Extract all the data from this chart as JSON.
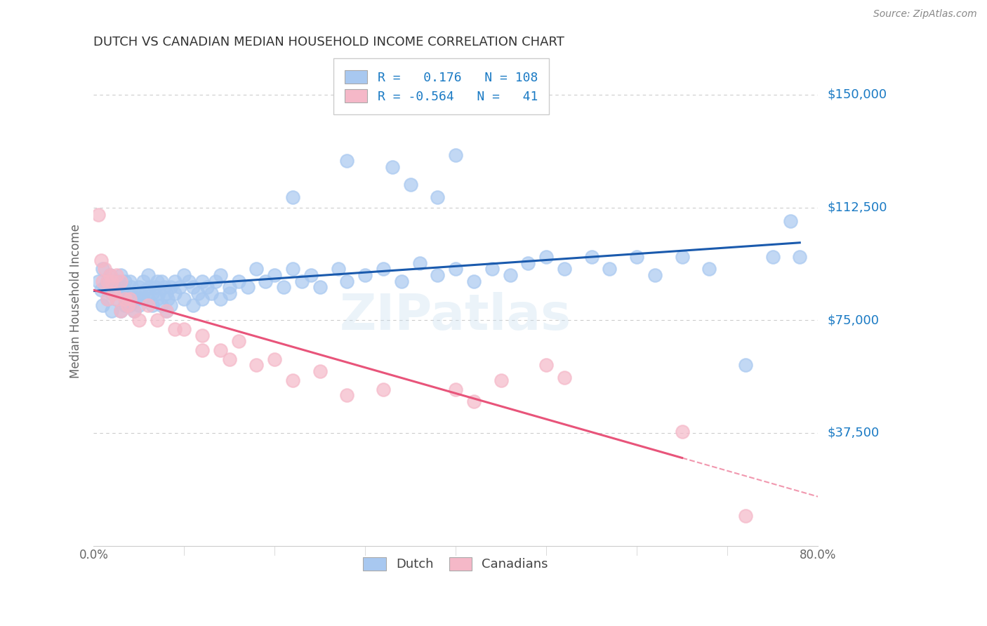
{
  "title": "DUTCH VS CANADIAN MEDIAN HOUSEHOLD INCOME CORRELATION CHART",
  "source": "Source: ZipAtlas.com",
  "ylabel": "Median Household Income",
  "ytick_labels": [
    "$37,500",
    "$75,000",
    "$112,500",
    "$150,000"
  ],
  "ytick_values": [
    37500,
    75000,
    112500,
    150000
  ],
  "ymin": 0,
  "ymax": 162500,
  "xmin": 0.0,
  "xmax": 0.8,
  "legend_dutch_r": "0.176",
  "legend_dutch_n": "108",
  "legend_canadian_r": "-0.564",
  "legend_canadian_n": "41",
  "dutch_color": "#a8c8f0",
  "dutch_edge_color": "#a8c8f0",
  "canadian_color": "#f5b8c8",
  "canadian_edge_color": "#f5b8c8",
  "dutch_line_color": "#1a5aad",
  "canadian_line_color": "#e8547a",
  "background_color": "#ffffff",
  "grid_color": "#cccccc",
  "watermark": "ZIPatlas",
  "dutch_scatter_x": [
    0.005,
    0.008,
    0.01,
    0.01,
    0.012,
    0.015,
    0.015,
    0.018,
    0.02,
    0.02,
    0.022,
    0.025,
    0.025,
    0.028,
    0.03,
    0.03,
    0.03,
    0.032,
    0.035,
    0.035,
    0.038,
    0.04,
    0.04,
    0.042,
    0.045,
    0.045,
    0.048,
    0.05,
    0.05,
    0.052,
    0.055,
    0.055,
    0.058,
    0.06,
    0.06,
    0.062,
    0.065,
    0.065,
    0.068,
    0.07,
    0.07,
    0.072,
    0.075,
    0.075,
    0.078,
    0.08,
    0.08,
    0.082,
    0.085,
    0.085,
    0.09,
    0.09,
    0.095,
    0.1,
    0.1,
    0.105,
    0.11,
    0.11,
    0.115,
    0.12,
    0.12,
    0.125,
    0.13,
    0.135,
    0.14,
    0.14,
    0.15,
    0.15,
    0.16,
    0.17,
    0.18,
    0.19,
    0.2,
    0.21,
    0.22,
    0.23,
    0.24,
    0.25,
    0.27,
    0.28,
    0.3,
    0.32,
    0.34,
    0.36,
    0.38,
    0.4,
    0.42,
    0.44,
    0.46,
    0.48,
    0.5,
    0.52,
    0.55,
    0.57,
    0.6,
    0.62,
    0.65,
    0.68,
    0.72,
    0.75,
    0.77,
    0.78,
    0.4,
    0.38,
    0.35,
    0.33,
    0.28,
    0.22
  ],
  "dutch_scatter_y": [
    88000,
    85000,
    92000,
    80000,
    86000,
    88000,
    82000,
    90000,
    84000,
    78000,
    86000,
    88000,
    82000,
    85000,
    90000,
    84000,
    78000,
    86000,
    88000,
    80000,
    84000,
    88000,
    80000,
    86000,
    84000,
    78000,
    82000,
    86000,
    80000,
    84000,
    88000,
    82000,
    85000,
    90000,
    82000,
    86000,
    84000,
    80000,
    86000,
    88000,
    82000,
    84000,
    88000,
    80000,
    86000,
    84000,
    78000,
    82000,
    86000,
    80000,
    88000,
    84000,
    86000,
    90000,
    82000,
    88000,
    86000,
    80000,
    84000,
    88000,
    82000,
    86000,
    84000,
    88000,
    90000,
    82000,
    86000,
    84000,
    88000,
    86000,
    92000,
    88000,
    90000,
    86000,
    92000,
    88000,
    90000,
    86000,
    92000,
    88000,
    90000,
    92000,
    88000,
    94000,
    90000,
    92000,
    88000,
    92000,
    90000,
    94000,
    96000,
    92000,
    96000,
    92000,
    96000,
    90000,
    96000,
    92000,
    60000,
    96000,
    108000,
    96000,
    130000,
    116000,
    120000,
    126000,
    128000,
    116000
  ],
  "canadian_scatter_x": [
    0.005,
    0.008,
    0.01,
    0.012,
    0.015,
    0.015,
    0.018,
    0.02,
    0.022,
    0.025,
    0.025,
    0.03,
    0.03,
    0.035,
    0.038,
    0.04,
    0.045,
    0.05,
    0.06,
    0.07,
    0.08,
    0.09,
    0.1,
    0.12,
    0.12,
    0.14,
    0.15,
    0.16,
    0.18,
    0.2,
    0.22,
    0.25,
    0.28,
    0.32,
    0.4,
    0.42,
    0.45,
    0.5,
    0.52,
    0.65,
    0.72
  ],
  "canadian_scatter_y": [
    110000,
    95000,
    88000,
    92000,
    88000,
    82000,
    90000,
    88000,
    84000,
    90000,
    82000,
    88000,
    78000,
    82000,
    80000,
    82000,
    78000,
    75000,
    80000,
    75000,
    78000,
    72000,
    72000,
    70000,
    65000,
    65000,
    62000,
    68000,
    60000,
    62000,
    55000,
    58000,
    50000,
    52000,
    52000,
    48000,
    55000,
    60000,
    56000,
    38000,
    10000
  ]
}
